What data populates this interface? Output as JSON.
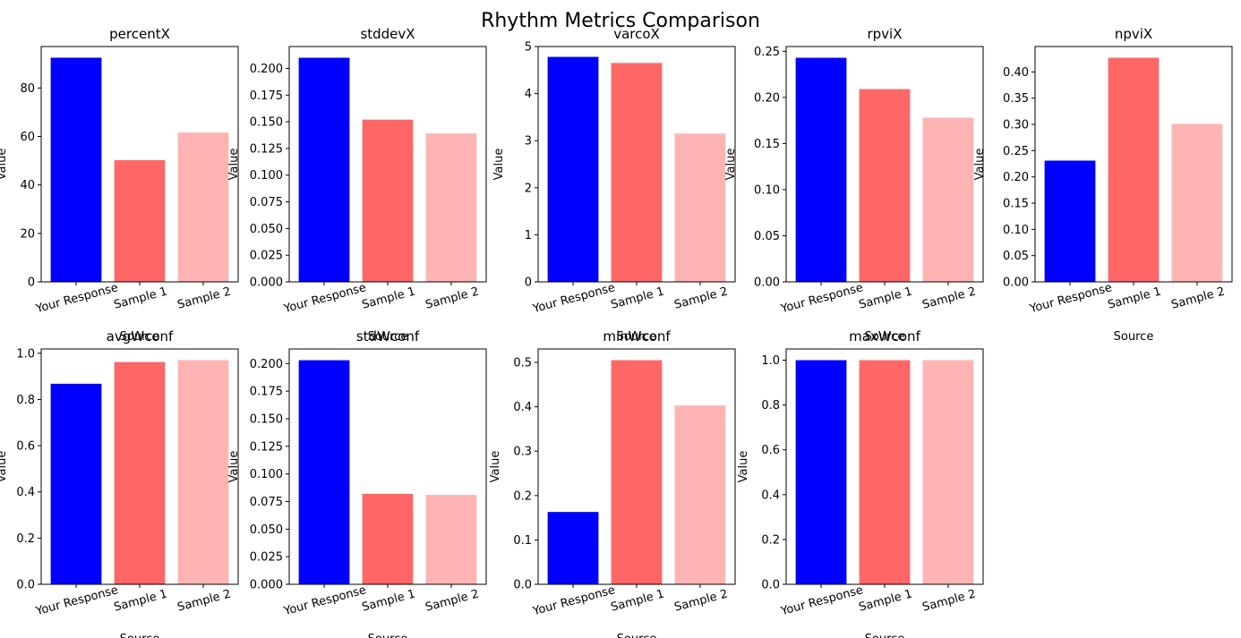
{
  "figure": {
    "title": "Rhythm Metrics Comparison",
    "xlabel": "Source",
    "ylabel": "Value",
    "colors": [
      "#0000ff",
      "#ff6666",
      "#ffb3b3"
    ]
  },
  "chart_data": [
    {
      "type": "bar",
      "title": "percentX",
      "categories": [
        "Your Response",
        "Sample 1",
        "Sample 2"
      ],
      "values": [
        92.5,
        50.2,
        61.6
      ],
      "ylim": [
        0,
        97.1
      ],
      "yticks": [
        0,
        20,
        40,
        60,
        80
      ],
      "tick_decimals": 0
    },
    {
      "type": "bar",
      "title": "stddevX",
      "categories": [
        "Your Response",
        "Sample 1",
        "Sample 2"
      ],
      "values": [
        0.21,
        0.152,
        0.139
      ],
      "ylim": [
        0,
        0.2205
      ],
      "yticks": [
        0,
        0.025,
        0.05,
        0.075,
        0.1,
        0.125,
        0.15,
        0.175,
        0.2
      ],
      "tick_decimals": 3
    },
    {
      "type": "bar",
      "title": "varcoX",
      "categories": [
        "Your Response",
        "Sample 1",
        "Sample 2"
      ],
      "values": [
        4.78,
        4.65,
        3.15
      ],
      "ylim": [
        0,
        5.0
      ],
      "yticks": [
        0,
        1,
        2,
        3,
        4,
        5
      ],
      "tick_decimals": 0
    },
    {
      "type": "bar",
      "title": "rpviX",
      "categories": [
        "Your Response",
        "Sample 1",
        "Sample 2"
      ],
      "values": [
        0.243,
        0.209,
        0.178
      ],
      "ylim": [
        0,
        0.2552
      ],
      "yticks": [
        0,
        0.05,
        0.1,
        0.15,
        0.2,
        0.25
      ],
      "tick_decimals": 2
    },
    {
      "type": "bar",
      "title": "npviX",
      "categories": [
        "Your Response",
        "Sample 1",
        "Sample 2"
      ],
      "values": [
        0.231,
        0.427,
        0.301
      ],
      "ylim": [
        0,
        0.4484
      ],
      "yticks": [
        0,
        0.05,
        0.1,
        0.15,
        0.2,
        0.25,
        0.3,
        0.35,
        0.4
      ],
      "tick_decimals": 2
    },
    {
      "type": "bar",
      "title": "avgWconf",
      "categories": [
        "Your Response",
        "Sample 1",
        "Sample 2"
      ],
      "values": [
        0.868,
        0.962,
        0.97
      ],
      "ylim": [
        0,
        1.0185
      ],
      "yticks": [
        0,
        0.2,
        0.4,
        0.6,
        0.8,
        1.0
      ],
      "tick_decimals": 1
    },
    {
      "type": "bar",
      "title": "stdWconf",
      "categories": [
        "Your Response",
        "Sample 1",
        "Sample 2"
      ],
      "values": [
        0.203,
        0.082,
        0.081
      ],
      "ylim": [
        0,
        0.2132
      ],
      "yticks": [
        0,
        0.025,
        0.05,
        0.075,
        0.1,
        0.125,
        0.15,
        0.175,
        0.2
      ],
      "tick_decimals": 3
    },
    {
      "type": "bar",
      "title": "minWconf",
      "categories": [
        "Your Response",
        "Sample 1",
        "Sample 2"
      ],
      "values": [
        0.163,
        0.505,
        0.403
      ],
      "ylim": [
        0,
        0.5303
      ],
      "yticks": [
        0,
        0.1,
        0.2,
        0.3,
        0.4,
        0.5
      ],
      "tick_decimals": 1
    },
    {
      "type": "bar",
      "title": "maxWconf",
      "categories": [
        "Your Response",
        "Sample 1",
        "Sample 2"
      ],
      "values": [
        1.0,
        1.0,
        1.0
      ],
      "ylim": [
        0,
        1.05
      ],
      "yticks": [
        0,
        0.2,
        0.4,
        0.6,
        0.8,
        1.0
      ],
      "tick_decimals": 1
    }
  ]
}
